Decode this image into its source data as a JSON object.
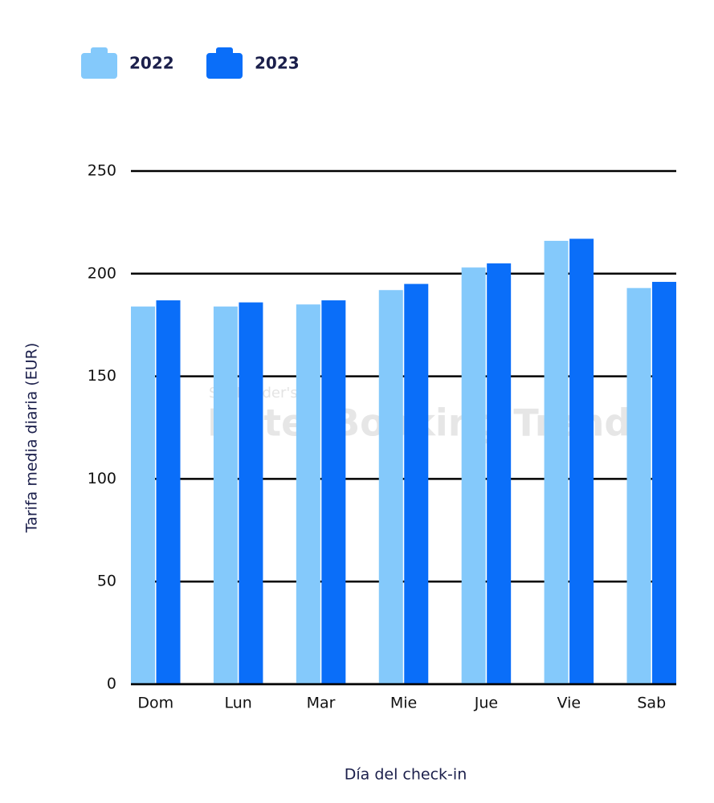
{
  "chart_data": {
    "type": "bar",
    "x_label": "Día del check-in",
    "y_label": "Tarifa media diaria (EUR)",
    "watermark": {
      "small": "SiteMinder's",
      "large": "Hotel Booking Trends"
    },
    "categories": [
      "Dom",
      "Lun",
      "Mar",
      "Mie",
      "Jue",
      "Vie",
      "Sab"
    ],
    "series": [
      {
        "name": "2022",
        "color": "#84c9fb",
        "values": [
          184,
          184,
          185,
          192,
          203,
          216,
          193
        ]
      },
      {
        "name": "2023",
        "color": "#0a6ef9",
        "values": [
          187,
          186,
          187,
          195,
          205,
          217,
          196
        ]
      }
    ],
    "ylim": [
      0,
      250
    ],
    "yticks": [
      0,
      50,
      100,
      150,
      200,
      250
    ],
    "grid": true,
    "legend": "top-left"
  }
}
